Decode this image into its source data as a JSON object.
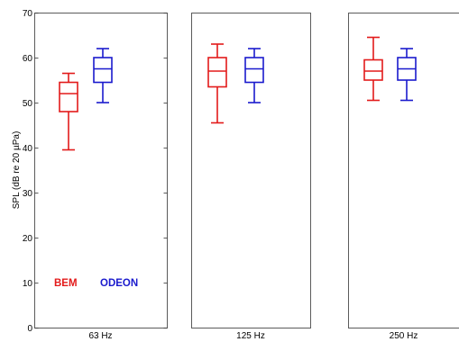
{
  "chart_data": {
    "type": "box",
    "ylabel": "SPL (dB re 20 µPa)",
    "ylim": [
      0,
      70
    ],
    "yticks": [
      "0",
      "10",
      "20",
      "30",
      "40",
      "50",
      "60",
      "70"
    ],
    "grid": false,
    "panels": [
      {
        "label": "63 Hz",
        "boxes": [
          {
            "name": "BEM",
            "min": 39.5,
            "q1": 48.0,
            "median": 52.0,
            "q3": 54.5,
            "max": 56.5
          },
          {
            "name": "ODEON",
            "min": 50.0,
            "q1": 54.5,
            "median": 57.5,
            "q3": 60.0,
            "max": 62.0
          }
        ]
      },
      {
        "label": "125 Hz",
        "boxes": [
          {
            "name": "BEM",
            "min": 45.5,
            "q1": 53.5,
            "median": 57.0,
            "q3": 60.0,
            "max": 63.0
          },
          {
            "name": "ODEON",
            "min": 50.0,
            "q1": 54.5,
            "median": 57.5,
            "q3": 60.0,
            "max": 62.0
          }
        ]
      },
      {
        "label": "250 Hz",
        "boxes": [
          {
            "name": "BEM",
            "min": 50.5,
            "q1": 55.0,
            "median": 57.0,
            "q3": 59.5,
            "max": 64.5
          },
          {
            "name": "ODEON",
            "min": 50.5,
            "q1": 55.0,
            "median": 57.5,
            "q3": 60.0,
            "max": 62.0
          }
        ]
      }
    ],
    "legend": {
      "placement": "bottom-left of first panel",
      "entries": [
        {
          "name": "BEM",
          "color": "#e31a1a"
        },
        {
          "name": "ODEON",
          "color": "#1a1acd"
        }
      ]
    }
  }
}
